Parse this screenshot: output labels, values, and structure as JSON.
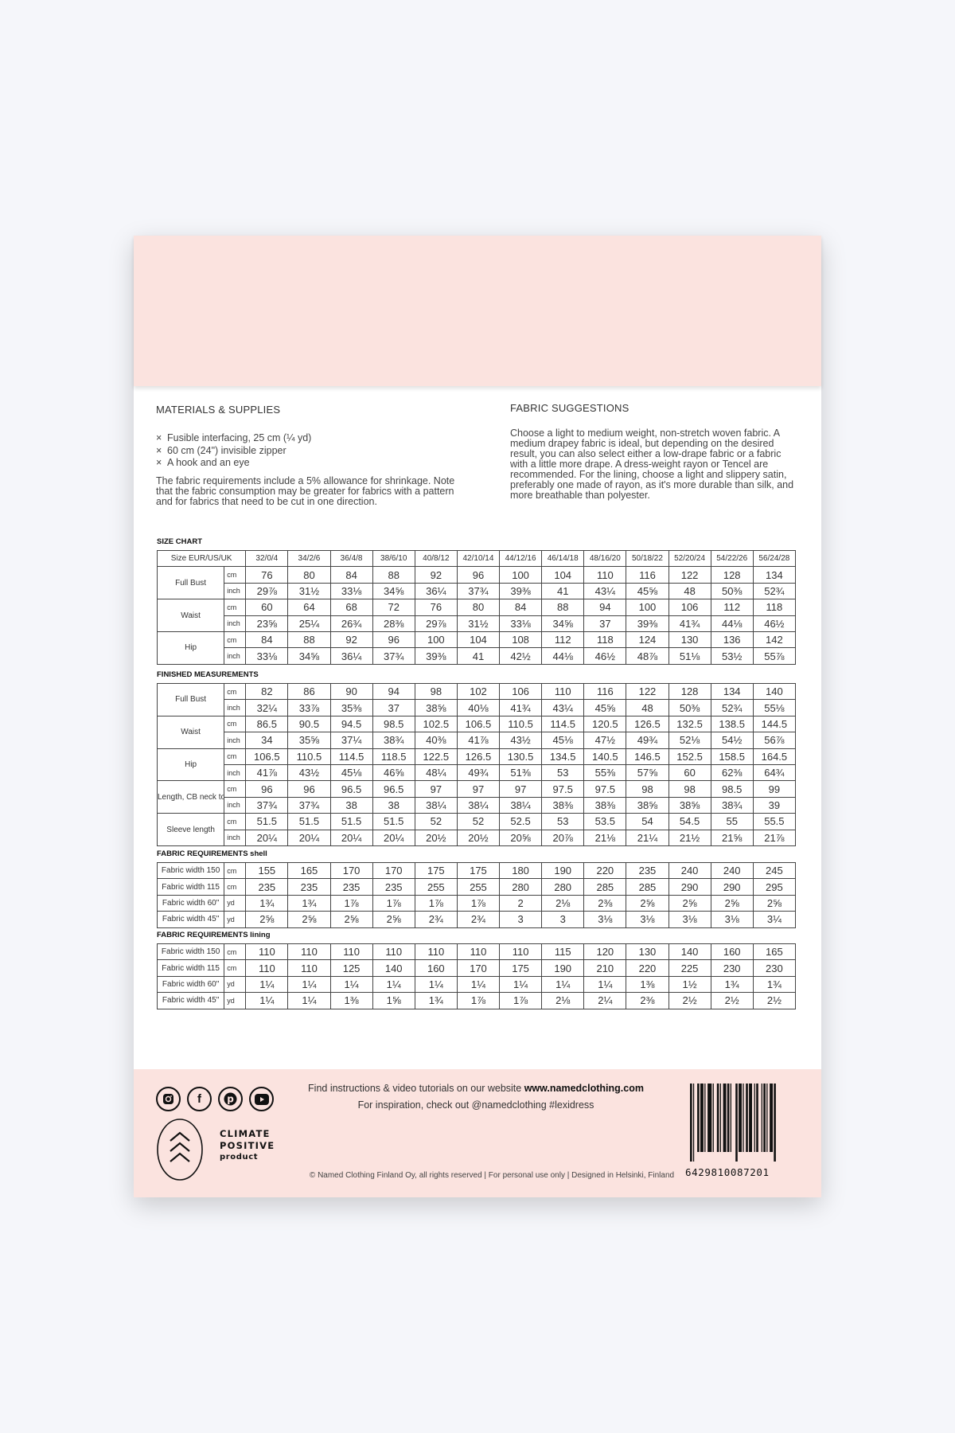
{
  "materials": {
    "title": "MATERIALS & SUPPLIES",
    "items": [
      "Fusible interfacing, 25 cm (¼ yd)",
      "60 cm (24\") invisible zipper",
      "A hook and an eye"
    ],
    "bullet": "×",
    "note": "The fabric requirements include a 5% allowance for shrinkage. Note that the fabric consumption may be greater for fabrics with a pattern and for fabrics that need to be cut in one direction."
  },
  "fabric_suggestions": {
    "title": "FABRIC SUGGESTIONS",
    "text": "Choose a light to medium weight, non-stretch woven fabric. A medium drapey fabric is ideal, but depending on the desired result, you can also select either a low-drape fabric or a fabric with a little more drape. A dress-weight rayon or Tencel are recommended. For the lining, choose a light and slippery satin, preferably one made of rayon, as it's more durable than silk, and more breathable than polyester."
  },
  "size_chart": {
    "title": "SIZE CHART",
    "header_label": "Size EUR/US/UK",
    "sizes": [
      "32/0/4",
      "34/2/6",
      "36/4/8",
      "38/6/10",
      "40/8/12",
      "42/10/14",
      "44/12/16",
      "46/14/18",
      "48/16/20",
      "50/18/22",
      "52/20/24",
      "54/22/26",
      "56/24/28"
    ],
    "groups": [
      {
        "label": "Full Bust",
        "rows": [
          {
            "unit": "cm",
            "values": [
              "76",
              "80",
              "84",
              "88",
              "92",
              "96",
              "100",
              "104",
              "110",
              "116",
              "122",
              "128",
              "134"
            ]
          },
          {
            "unit": "inch",
            "values": [
              "29⅞",
              "31½",
              "33⅛",
              "34⅝",
              "36¼",
              "37¾",
              "39⅜",
              "41",
              "43¼",
              "45⅝",
              "48",
              "50⅜",
              "52¾"
            ]
          }
        ]
      },
      {
        "label": "Waist",
        "rows": [
          {
            "unit": "cm",
            "values": [
              "60",
              "64",
              "68",
              "72",
              "76",
              "80",
              "84",
              "88",
              "94",
              "100",
              "106",
              "112",
              "118"
            ]
          },
          {
            "unit": "inch",
            "values": [
              "23⅝",
              "25¼",
              "26¾",
              "28⅜",
              "29⅞",
              "31½",
              "33⅛",
              "34⅝",
              "37",
              "39⅜",
              "41¾",
              "44⅛",
              "46½"
            ]
          }
        ]
      },
      {
        "label": "Hip",
        "rows": [
          {
            "unit": "cm",
            "values": [
              "84",
              "88",
              "92",
              "96",
              "100",
              "104",
              "108",
              "112",
              "118",
              "124",
              "130",
              "136",
              "142"
            ]
          },
          {
            "unit": "inch",
            "values": [
              "33⅛",
              "34⅝",
              "36¼",
              "37¾",
              "39⅜",
              "41",
              "42½",
              "44⅛",
              "46½",
              "48⅞",
              "51⅛",
              "53½",
              "55⅞"
            ]
          }
        ]
      }
    ]
  },
  "finished": {
    "title": "FINISHED MEASUREMENTS",
    "groups": [
      {
        "label": "Full Bust",
        "rows": [
          {
            "unit": "cm",
            "values": [
              "82",
              "86",
              "90",
              "94",
              "98",
              "102",
              "106",
              "110",
              "116",
              "122",
              "128",
              "134",
              "140"
            ]
          },
          {
            "unit": "inch",
            "values": [
              "32¼",
              "33⅞",
              "35⅜",
              "37",
              "38⅝",
              "40⅛",
              "41¾",
              "43¼",
              "45⅝",
              "48",
              "50⅜",
              "52¾",
              "55⅛"
            ]
          }
        ]
      },
      {
        "label": "Waist",
        "rows": [
          {
            "unit": "cm",
            "values": [
              "86.5",
              "90.5",
              "94.5",
              "98.5",
              "102.5",
              "106.5",
              "110.5",
              "114.5",
              "120.5",
              "126.5",
              "132.5",
              "138.5",
              "144.5"
            ]
          },
          {
            "unit": "inch",
            "values": [
              "34",
              "35⅝",
              "37¼",
              "38¾",
              "40⅜",
              "41⅞",
              "43½",
              "45⅛",
              "47½",
              "49¾",
              "52⅛",
              "54½",
              "56⅞"
            ]
          }
        ]
      },
      {
        "label": "Hip",
        "rows": [
          {
            "unit": "cm",
            "values": [
              "106.5",
              "110.5",
              "114.5",
              "118.5",
              "122.5",
              "126.5",
              "130.5",
              "134.5",
              "140.5",
              "146.5",
              "152.5",
              "158.5",
              "164.5"
            ]
          },
          {
            "unit": "inch",
            "values": [
              "41⅞",
              "43½",
              "45⅛",
              "46⅝",
              "48¼",
              "49¾",
              "51⅜",
              "53",
              "55⅜",
              "57⅝",
              "60",
              "62⅜",
              "64¾"
            ]
          }
        ]
      },
      {
        "label": "Length, CB neck to hem",
        "rows": [
          {
            "unit": "cm",
            "values": [
              "96",
              "96",
              "96.5",
              "96.5",
              "97",
              "97",
              "97",
              "97.5",
              "97.5",
              "98",
              "98",
              "98.5",
              "99"
            ]
          },
          {
            "unit": "inch",
            "values": [
              "37¾",
              "37¾",
              "38",
              "38",
              "38¼",
              "38¼",
              "38¼",
              "38⅜",
              "38⅜",
              "38⅝",
              "38⅝",
              "38¾",
              "39"
            ]
          }
        ]
      },
      {
        "label": "Sleeve length",
        "rows": [
          {
            "unit": "cm",
            "values": [
              "51.5",
              "51.5",
              "51.5",
              "51.5",
              "52",
              "52",
              "52.5",
              "53",
              "53.5",
              "54",
              "54.5",
              "55",
              "55.5"
            ]
          },
          {
            "unit": "inch",
            "values": [
              "20¼",
              "20¼",
              "20¼",
              "20¼",
              "20½",
              "20½",
              "20⅝",
              "20⅞",
              "21⅛",
              "21¼",
              "21½",
              "21⅝",
              "21⅞"
            ]
          }
        ]
      }
    ]
  },
  "shell": {
    "title": "FABRIC REQUIREMENTS shell",
    "rows": [
      {
        "label": "Fabric width 150",
        "unit": "cm",
        "values": [
          "155",
          "165",
          "170",
          "170",
          "175",
          "175",
          "180",
          "190",
          "220",
          "235",
          "240",
          "240",
          "245"
        ]
      },
      {
        "label": "Fabric width 115",
        "unit": "cm",
        "values": [
          "235",
          "235",
          "235",
          "235",
          "255",
          "255",
          "280",
          "280",
          "285",
          "285",
          "290",
          "290",
          "295"
        ]
      },
      {
        "label": "Fabric width 60\"",
        "unit": "yd",
        "values": [
          "1¾",
          "1¾",
          "1⅞",
          "1⅞",
          "1⅞",
          "1⅞",
          "2",
          "2⅛",
          "2⅜",
          "2⅝",
          "2⅝",
          "2⅝",
          "2⅝"
        ]
      },
      {
        "label": "Fabric width 45\"",
        "unit": "yd",
        "values": [
          "2⅝",
          "2⅝",
          "2⅝",
          "2⅝",
          "2¾",
          "2¾",
          "3",
          "3",
          "3⅛",
          "3⅛",
          "3⅛",
          "3⅛",
          "3¼"
        ]
      }
    ]
  },
  "lining": {
    "title": "FABRIC REQUIREMENTS lining",
    "rows": [
      {
        "label": "Fabric width 150",
        "unit": "cm",
        "values": [
          "110",
          "110",
          "110",
          "110",
          "110",
          "110",
          "110",
          "115",
          "120",
          "130",
          "140",
          "160",
          "165"
        ]
      },
      {
        "label": "Fabric width 115",
        "unit": "cm",
        "values": [
          "110",
          "110",
          "125",
          "140",
          "160",
          "170",
          "175",
          "190",
          "210",
          "220",
          "225",
          "230",
          "230"
        ]
      },
      {
        "label": "Fabric width 60\"",
        "unit": "yd",
        "values": [
          "1¼",
          "1¼",
          "1¼",
          "1¼",
          "1¼",
          "1¼",
          "1¼",
          "1¼",
          "1¼",
          "1⅜",
          "1½",
          "1¾",
          "1¾"
        ]
      },
      {
        "label": "Fabric width 45\"",
        "unit": "yd",
        "values": [
          "1¼",
          "1¼",
          "1⅜",
          "1⅝",
          "1¾",
          "1⅞",
          "1⅞",
          "2⅛",
          "2¼",
          "2⅜",
          "2½",
          "2½",
          "2½"
        ]
      }
    ]
  },
  "footer": {
    "line1_prefix": "Find instructions & video tutorials on our website ",
    "website": "www.namedclothing.com",
    "line2": "For inspiration, check out @namedclothing #lexidress",
    "copyright": "© Named Clothing Finland Oy, all rights reserved | For personal use only | Designed in Helsinki, Finland",
    "social_icons": [
      "instagram-icon",
      "facebook-icon",
      "pinterest-icon",
      "youtube-icon"
    ],
    "climate": {
      "line1": "CLIMATE",
      "line2": "POSITIVE",
      "line3": "product"
    },
    "barcode": "6429810087201"
  },
  "colors": {
    "pink": "#fbe3df",
    "background": "#f5f6fa"
  }
}
